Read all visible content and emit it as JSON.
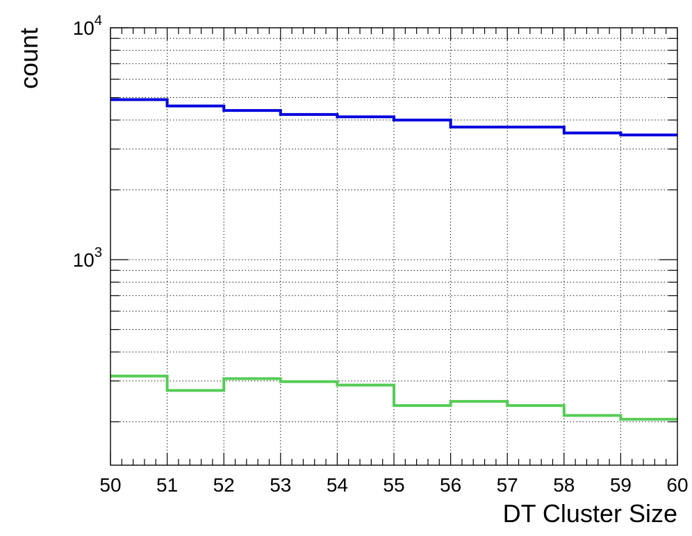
{
  "chart_data": {
    "type": "line",
    "style": "step-histogram",
    "title": "",
    "xlabel": "DT Cluster Size",
    "ylabel": "count",
    "xlim": [
      50,
      60
    ],
    "ylim": [
      130,
      10000
    ],
    "yscale": "log",
    "grid": true,
    "x_ticks": [
      "50",
      "51",
      "52",
      "53",
      "54",
      "55",
      "56",
      "57",
      "58",
      "59",
      "60"
    ],
    "y_ticks": [
      {
        "base": "10",
        "exp": "3",
        "value": 1000
      },
      {
        "base": "10",
        "exp": "4",
        "value": 10000
      }
    ],
    "bin_edges": [
      50,
      51,
      52,
      53,
      54,
      55,
      56,
      57,
      58,
      59,
      60
    ],
    "series": [
      {
        "color": "#0000dd",
        "values": [
          4900,
          4600,
          4400,
          4230,
          4130,
          4000,
          3730,
          3730,
          3520,
          3450
        ]
      },
      {
        "color": "#55cc55",
        "values": [
          315,
          273,
          307,
          298,
          288,
          235,
          245,
          235,
          213,
          205
        ]
      }
    ]
  }
}
